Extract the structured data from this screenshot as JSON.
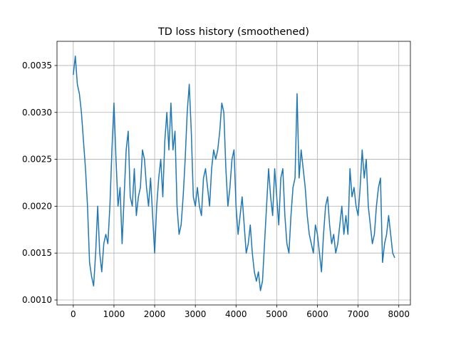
{
  "chart_data": {
    "type": "line",
    "title": "TD loss history (smoothened)",
    "color": "#1f77b4",
    "grid": true,
    "x": [
      0,
      50,
      100,
      150,
      200,
      250,
      300,
      350,
      400,
      450,
      500,
      550,
      600,
      650,
      700,
      750,
      800,
      850,
      900,
      950,
      1000,
      1050,
      1100,
      1150,
      1200,
      1250,
      1300,
      1350,
      1400,
      1450,
      1500,
      1550,
      1600,
      1650,
      1700,
      1750,
      1800,
      1850,
      1900,
      1950,
      2000,
      2050,
      2100,
      2150,
      2200,
      2250,
      2300,
      2350,
      2400,
      2450,
      2500,
      2550,
      2600,
      2650,
      2700,
      2750,
      2800,
      2850,
      2900,
      2950,
      3000,
      3050,
      3100,
      3150,
      3200,
      3250,
      3300,
      3350,
      3400,
      3450,
      3500,
      3550,
      3600,
      3650,
      3700,
      3750,
      3800,
      3850,
      3900,
      3950,
      4000,
      4050,
      4100,
      4150,
      4200,
      4250,
      4300,
      4350,
      4400,
      4450,
      4500,
      4550,
      4600,
      4650,
      4700,
      4750,
      4800,
      4850,
      4900,
      4950,
      5000,
      5050,
      5100,
      5150,
      5200,
      5250,
      5300,
      5350,
      5400,
      5450,
      5500,
      5550,
      5600,
      5650,
      5700,
      5750,
      5800,
      5850,
      5900,
      5950,
      6000,
      6050,
      6100,
      6150,
      6200,
      6250,
      6300,
      6350,
      6400,
      6450,
      6500,
      6550,
      6600,
      6650,
      6700,
      6750,
      6800,
      6850,
      6900,
      6950,
      7000,
      7050,
      7100,
      7150,
      7200,
      7250,
      7300,
      7350,
      7400,
      7450,
      7500,
      7550,
      7600,
      7650,
      7700,
      7750,
      7800,
      7850,
      7900
    ],
    "values": [
      0.0034,
      0.0036,
      0.0033,
      0.0032,
      0.003,
      0.0027,
      0.0024,
      0.002,
      0.0014,
      0.00125,
      0.00115,
      0.0015,
      0.002,
      0.0015,
      0.0013,
      0.0016,
      0.0017,
      0.0016,
      0.002,
      0.0026,
      0.0031,
      0.0025,
      0.002,
      0.0022,
      0.0016,
      0.0021,
      0.0026,
      0.0028,
      0.0021,
      0.002,
      0.0024,
      0.0019,
      0.0021,
      0.0022,
      0.0026,
      0.0025,
      0.0022,
      0.002,
      0.0023,
      0.0019,
      0.0015,
      0.002,
      0.0023,
      0.0025,
      0.0021,
      0.0027,
      0.003,
      0.0026,
      0.0031,
      0.0026,
      0.0028,
      0.002,
      0.0017,
      0.0018,
      0.0021,
      0.0025,
      0.003,
      0.0033,
      0.0028,
      0.0021,
      0.002,
      0.0022,
      0.002,
      0.0019,
      0.0023,
      0.0024,
      0.0022,
      0.002,
      0.0024,
      0.0026,
      0.0025,
      0.0026,
      0.0028,
      0.0031,
      0.003,
      0.0024,
      0.002,
      0.0022,
      0.0025,
      0.0026,
      0.002,
      0.0017,
      0.0019,
      0.0021,
      0.0018,
      0.0015,
      0.0016,
      0.0018,
      0.0015,
      0.0013,
      0.0012,
      0.0013,
      0.0011,
      0.0012,
      0.0016,
      0.002,
      0.0024,
      0.0021,
      0.0019,
      0.0024,
      0.0021,
      0.0018,
      0.0023,
      0.0024,
      0.0019,
      0.0016,
      0.0015,
      0.0019,
      0.0022,
      0.0023,
      0.0032,
      0.0023,
      0.0026,
      0.0024,
      0.0022,
      0.0019,
      0.0017,
      0.0016,
      0.0015,
      0.0018,
      0.0017,
      0.0015,
      0.0013,
      0.0017,
      0.002,
      0.0021,
      0.0018,
      0.0016,
      0.0017,
      0.0015,
      0.0016,
      0.0018,
      0.002,
      0.0017,
      0.0019,
      0.0017,
      0.0024,
      0.0021,
      0.0022,
      0.002,
      0.0019,
      0.0022,
      0.0026,
      0.0023,
      0.0025,
      0.002,
      0.0018,
      0.0016,
      0.0017,
      0.002,
      0.0022,
      0.0023,
      0.0014,
      0.0016,
      0.0017,
      0.0019,
      0.0017,
      0.0015,
      0.00145
    ],
    "xlim": [
      -400,
      8285
    ],
    "xticks": [
      0,
      1000,
      2000,
      3000,
      4000,
      5000,
      6000,
      7000,
      8000
    ],
    "ylim": [
      0.000947,
      0.003758
    ],
    "yticks": [
      {
        "value": 0.001,
        "label": "0.0010"
      },
      {
        "value": 0.0015,
        "label": "0.0015"
      },
      {
        "value": 0.002,
        "label": "0.0020"
      },
      {
        "value": 0.0025,
        "label": "0.0025"
      },
      {
        "value": 0.003,
        "label": "0.0030"
      },
      {
        "value": 0.0035,
        "label": "0.0035"
      }
    ]
  }
}
